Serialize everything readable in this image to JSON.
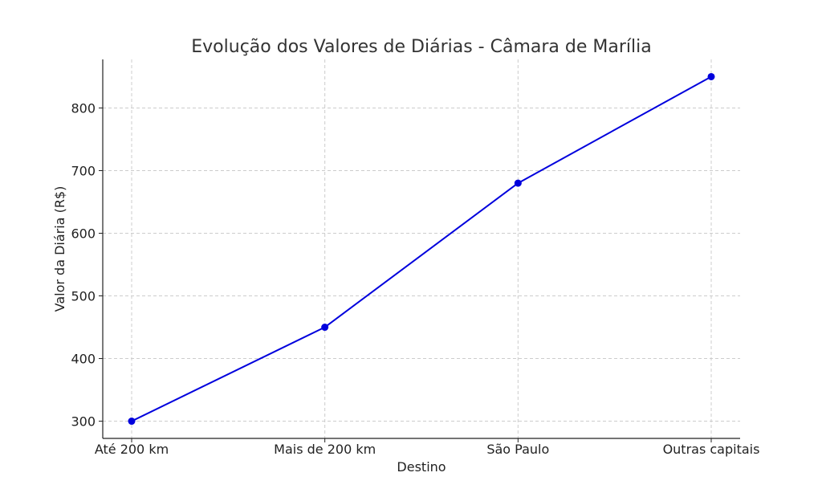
{
  "chart_data": {
    "type": "line",
    "title": "Evolução dos Valores de Diárias - Câmara de Marília",
    "xlabel": "Destino",
    "ylabel": "Valor da Diária (R$)",
    "categories": [
      "Até 200 km",
      "Mais de 200 km",
      "São Paulo",
      "Outras capitais"
    ],
    "series": [
      {
        "values": [
          300,
          450,
          680,
          850
        ],
        "color": "#0000dd"
      }
    ],
    "ylim": [
      272.5,
      877.5
    ],
    "yticks": [
      300,
      400,
      500,
      600,
      700,
      800
    ],
    "grid": true,
    "marker": "circle"
  }
}
